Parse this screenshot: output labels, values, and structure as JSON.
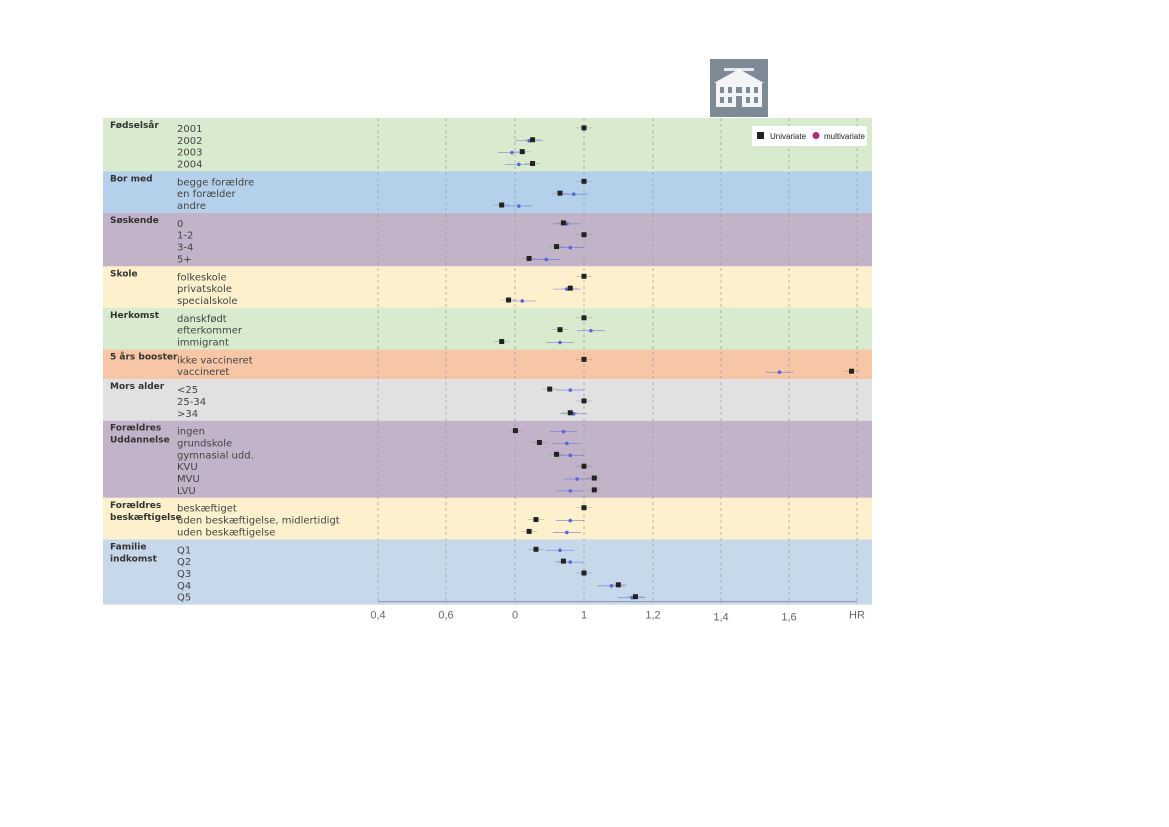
{
  "legend": {
    "univariate": "Univariate",
    "multivariate": "multivariate"
  },
  "colors": {
    "univariate": "#222222",
    "multivariate": "#5a67d8",
    "green": "#d9ebcf",
    "blue": "#b5d0ea",
    "purple": "#c3b3c9",
    "yellow": "#fdf1cd",
    "orange": "#f7c6a7",
    "gray": "#e1e1e1",
    "lightblue": "#c8d8eb"
  },
  "chart_data": {
    "type": "scatter",
    "xlabel": "HR",
    "ticks": [
      "0,4",
      "0,6",
      "0",
      "1",
      "1,2",
      "1,4",
      "1,6",
      "HR"
    ],
    "series": [
      {
        "name": "Univariate"
      },
      {
        "name": "multivariate"
      }
    ],
    "groups": [
      {
        "label": "Fødselsår",
        "color": "green",
        "rows": [
          {
            "label": "2001",
            "uni": 1.0,
            "multi": null
          },
          {
            "label": "2002",
            "uni": 0.85,
            "multi": 0.84
          },
          {
            "label": "2003",
            "uni": 0.82,
            "multi": 0.79
          },
          {
            "label": "2004",
            "uni": 0.85,
            "multi": 0.81
          }
        ]
      },
      {
        "label": "Bor med",
        "color": "blue",
        "rows": [
          {
            "label": "begge forældre",
            "uni": 1.0,
            "multi": null
          },
          {
            "label": "en forælder",
            "uni": 0.93,
            "multi": 0.97
          },
          {
            "label": "andre",
            "uni": 0.76,
            "multi": 0.81
          }
        ]
      },
      {
        "label": "Søskende",
        "color": "purple",
        "rows": [
          {
            "label": "0",
            "uni": 0.94,
            "multi": 0.95
          },
          {
            "label": "1-2",
            "uni": 1.0,
            "multi": null
          },
          {
            "label": "3-4",
            "uni": 0.92,
            "multi": 0.96
          },
          {
            "label": "5+",
            "uni": 0.84,
            "multi": 0.89
          }
        ]
      },
      {
        "label": "Skole",
        "color": "yellow",
        "rows": [
          {
            "label": "folkeskole",
            "uni": 1.0,
            "multi": null
          },
          {
            "label": "privatskole",
            "uni": 0.96,
            "multi": 0.95
          },
          {
            "label": "specialskole",
            "uni": 0.78,
            "multi": 0.82
          }
        ]
      },
      {
        "label": "Herkomst",
        "color": "green",
        "rows": [
          {
            "label": "danskfødt",
            "uni": 1.0,
            "multi": null
          },
          {
            "label": "efterkommer",
            "uni": 0.93,
            "multi": 1.02
          },
          {
            "label": "immigrant",
            "uni": 0.76,
            "multi": 0.93
          }
        ]
      },
      {
        "label": "5 års booster",
        "color": "orange",
        "rows": [
          {
            "label": "ikke vaccineret",
            "uni": 1.0,
            "multi": null
          },
          {
            "label": "vaccineret",
            "uni": 1.78,
            "multi": 1.57
          }
        ]
      },
      {
        "label": "Mors alder",
        "color": "gray",
        "rows": [
          {
            "label": "<25",
            "uni": 0.9,
            "multi": 0.96
          },
          {
            "label": "25-34",
            "uni": 1.0,
            "multi": null
          },
          {
            "label": ">34",
            "uni": 0.96,
            "multi": 0.97
          }
        ]
      },
      {
        "label": "Forældres Uddannelse",
        "color": "purple",
        "rows": [
          {
            "label": "ingen",
            "uni": 0.8,
            "multi": 0.94
          },
          {
            "label": "grundskole",
            "uni": 0.87,
            "multi": 0.95
          },
          {
            "label": "gymnasial udd.",
            "uni": 0.92,
            "multi": 0.96
          },
          {
            "label": "KVU",
            "uni": 1.0,
            "multi": null
          },
          {
            "label": "MVU",
            "uni": 1.03,
            "multi": 0.98
          },
          {
            "label": "LVU",
            "uni": 1.03,
            "multi": 0.96
          }
        ]
      },
      {
        "label": "Forældres beskæftigelse",
        "color": "yellow",
        "rows": [
          {
            "label": "beskæftiget",
            "uni": 1.0,
            "multi": null
          },
          {
            "label": "uden beskæftigelse, midlertidigt",
            "uni": 0.86,
            "multi": 0.96
          },
          {
            "label": "uden beskæftigelse",
            "uni": 0.84,
            "multi": 0.95
          }
        ]
      },
      {
        "label": "Familie indkomst",
        "color": "lightblue",
        "rows": [
          {
            "label": "Q1",
            "uni": 0.86,
            "multi": 0.93
          },
          {
            "label": "Q2",
            "uni": 0.94,
            "multi": 0.96
          },
          {
            "label": "Q3",
            "uni": 1.0,
            "multi": null
          },
          {
            "label": "Q4",
            "uni": 1.1,
            "multi": 1.08
          },
          {
            "label": "Q5",
            "uni": 1.15,
            "multi": 1.14
          }
        ]
      }
    ]
  }
}
